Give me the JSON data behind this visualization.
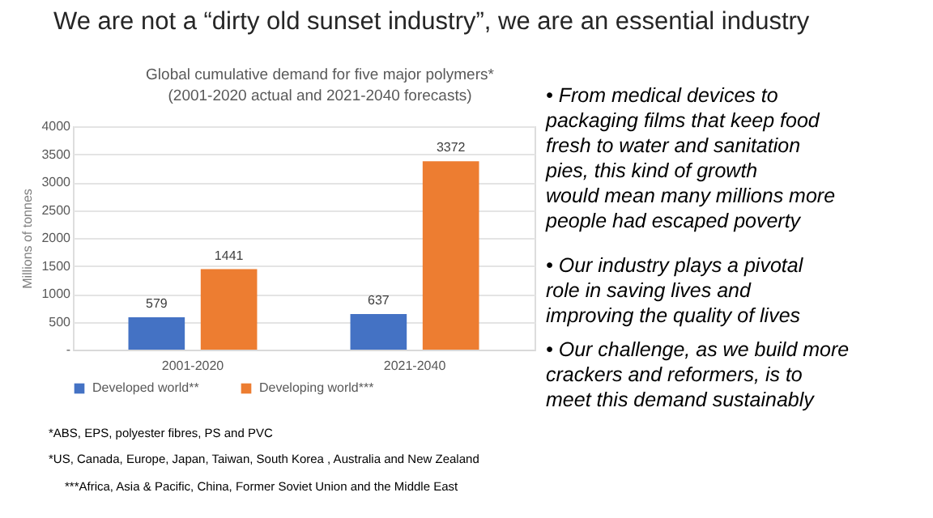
{
  "chart_data": {
    "type": "bar",
    "title": "We are not a “dirty old sunset industry”, we are an essential industry",
    "subtitle": "Global cumulative demand for five major polymers* (2001-2020 actual and 2021-2040 forecasts)",
    "ylabel": "Millions of tonnes",
    "categories": [
      "2001-2020",
      "2021-2040"
    ],
    "series": [
      {
        "name": "Developed world**",
        "color": "#4472c4",
        "values": [
          579,
          637
        ]
      },
      {
        "name": "Developing world***",
        "color": "#ed7d31",
        "values": [
          1441,
          3372
        ]
      }
    ],
    "ylim": [
      0,
      4000
    ],
    "yticks": [
      {
        "value": 0,
        "label": "-"
      },
      500,
      1000,
      1500,
      2000,
      2500,
      3000,
      3500,
      4000
    ],
    "grid": "y",
    "legend": "bottom",
    "data_labels": true,
    "annotations": [
      "• From medical devices to packaging films that keep food fresh to water and sanitation pies, this kind of growth would mean many millions more people had escaped poverty",
      "• Our industry plays a pivotal role in saving lives and improving the quality of lives",
      "• Our challenge, as we build more crackers and reformers, is to meet this demand sustainably",
      "*ABS, EPS, polyester fibres, PS and PVC",
      "*US, Canada, Europe, Japan, Taiwan, South Korea , Australia and New Zealand",
      "***Africa, Asia & Pacific, China, Former Soviet Union and the Middle East"
    ]
  }
}
